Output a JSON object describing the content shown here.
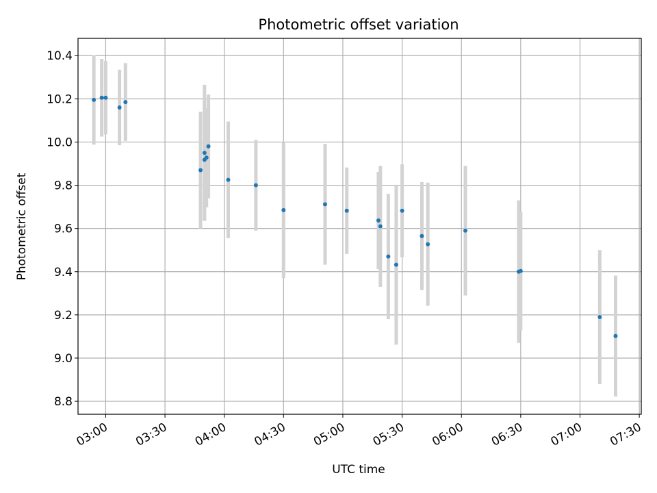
{
  "chart_data": {
    "type": "scatter",
    "title": "Photometric offset variation",
    "xlabel": "UTC time",
    "ylabel": "Photometric offset",
    "x_ticks": [
      "03:00",
      "03:30",
      "04:00",
      "04:30",
      "05:00",
      "05:30",
      "06:00",
      "06:30",
      "07:00",
      "07:30"
    ],
    "y_ticks": [
      "8.8",
      "9.0",
      "9.2",
      "9.4",
      "9.6",
      "9.8",
      "10.0",
      "10.2",
      "10.4"
    ],
    "xlim": [
      "02:46",
      "07:31"
    ],
    "ylim": [
      8.74,
      10.48
    ],
    "grid": true,
    "colors": {
      "point": "#1f77b4",
      "errorbar": "#d3d3d3",
      "grid": "#b0b0b0"
    },
    "points": [
      {
        "x": "02:54",
        "y": 10.195,
        "err": 0.207
      },
      {
        "x": "02:58",
        "y": 10.205,
        "err": 0.18
      },
      {
        "x": "03:00",
        "y": 10.205,
        "err": 0.17
      },
      {
        "x": "03:07",
        "y": 10.16,
        "err": 0.175
      },
      {
        "x": "03:10",
        "y": 10.185,
        "err": 0.18
      },
      {
        "x": "03:48",
        "y": 9.87,
        "err": 0.27
      },
      {
        "x": "03:50",
        "y": 9.95,
        "err": 0.315
      },
      {
        "x": "03:50",
        "y": 9.918,
        "err": 0.28
      },
      {
        "x": "03:51",
        "y": 9.928,
        "err": 0.23
      },
      {
        "x": "03:52",
        "y": 9.98,
        "err": 0.24
      },
      {
        "x": "04:02",
        "y": 9.825,
        "err": 0.27
      },
      {
        "x": "04:16",
        "y": 9.8,
        "err": 0.21
      },
      {
        "x": "04:30",
        "y": 9.685,
        "err": 0.315
      },
      {
        "x": "04:51",
        "y": 9.712,
        "err": 0.28
      },
      {
        "x": "05:02",
        "y": 9.682,
        "err": 0.2
      },
      {
        "x": "05:18",
        "y": 9.637,
        "err": 0.225
      },
      {
        "x": "05:19",
        "y": 9.61,
        "err": 0.28
      },
      {
        "x": "05:23",
        "y": 9.47,
        "err": 0.29
      },
      {
        "x": "05:27",
        "y": 9.432,
        "err": 0.37
      },
      {
        "x": "05:30",
        "y": 9.682,
        "err": 0.215
      },
      {
        "x": "05:40",
        "y": 9.565,
        "err": 0.25
      },
      {
        "x": "05:43",
        "y": 9.527,
        "err": 0.285
      },
      {
        "x": "06:02",
        "y": 9.59,
        "err": 0.3
      },
      {
        "x": "06:29",
        "y": 9.4,
        "err": 0.33
      },
      {
        "x": "06:30",
        "y": 9.403,
        "err": 0.275
      },
      {
        "x": "07:10",
        "y": 9.19,
        "err": 0.31
      },
      {
        "x": "07:18",
        "y": 9.102,
        "err": 0.28
      }
    ]
  }
}
